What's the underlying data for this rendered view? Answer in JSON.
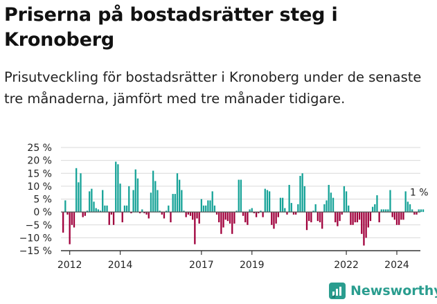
{
  "title": "Priserna på bostadsrätter steg i Kronoberg",
  "subtitle": "Prisutveckling för bostadsrätter i Kronoberg under de senaste tre månaderna, jämfört med tre månader tidigare.",
  "brand": {
    "name": "Newsworthy",
    "icon": "newsworthy-logo-icon",
    "color": "#2a9d8f"
  },
  "colors": {
    "positive": "#17a398",
    "negative": "#a0003c",
    "grid": "#d9d9d9",
    "axis": "#333333"
  },
  "chart_data": {
    "type": "bar",
    "title": "Priserna på bostadsrätter steg i Kronoberg",
    "xlabel": "",
    "ylabel": "",
    "ylim": [
      -15,
      25
    ],
    "yticks": [
      25,
      20,
      15,
      10,
      5,
      0,
      -5,
      -10,
      -15
    ],
    "ytick_labels": [
      "25 %",
      "20 %",
      "15 %",
      "10 %",
      "5 %",
      "0 %",
      "−5 %",
      "−10 %",
      "−15 %"
    ],
    "xtick_labels": [
      "2012",
      "2014",
      "2017",
      "2019",
      "2022",
      "2024"
    ],
    "xtick_index": [
      3,
      26,
      63,
      86,
      129,
      152
    ],
    "grid": true,
    "start": "2011-12",
    "end": "2025-02",
    "last_label": "1 %",
    "values": [
      -8,
      4.5,
      -1,
      -12.5,
      -5,
      -6,
      17,
      11.5,
      15,
      -2,
      -1.5,
      0.5,
      8,
      9,
      4,
      1.5,
      1,
      0.5,
      8.5,
      2.5,
      2.5,
      -5,
      -1,
      -5,
      19.5,
      18.5,
      11,
      -4,
      2.5,
      2.5,
      10,
      -0.5,
      8.5,
      16.5,
      13,
      -0.5,
      1,
      -0.5,
      -1,
      -2.5,
      7.5,
      16,
      12,
      8.5,
      0.5,
      -1,
      -2.5,
      0.5,
      2.5,
      -4,
      7,
      7,
      15,
      12.5,
      8.5,
      0.5,
      -2,
      -1,
      -1.5,
      -3,
      -12.5,
      -2.5,
      -4.5,
      5,
      2.5,
      2.5,
      4.5,
      4.5,
      8,
      2.5,
      -1,
      -4,
      -8.5,
      -6,
      -3,
      -3.5,
      -4.5,
      -8.5,
      -4.5,
      0.5,
      12.5,
      12.5,
      -1.5,
      -4,
      -5,
      1,
      1.5,
      -0.5,
      -2,
      -0.5,
      0.5,
      -2,
      9,
      8.5,
      8,
      -5,
      -6.5,
      -4.5,
      -2,
      5.5,
      5.5,
      1.5,
      -1,
      10.5,
      3.5,
      -1,
      -1,
      3,
      14,
      15,
      10,
      -7,
      -3.5,
      -4,
      0.5,
      3,
      -3.5,
      -4,
      -6.5,
      3,
      4.5,
      10.5,
      7.5,
      5.5,
      -4,
      -5.5,
      -3.5,
      -1,
      10,
      8,
      2.5,
      -5,
      -5,
      -4,
      -4,
      -3,
      -8.5,
      -13,
      -10,
      -6,
      -3.5,
      2,
      3,
      6.5,
      -4,
      1,
      1,
      1,
      1,
      8.5,
      -2,
      -3,
      -5,
      -5,
      -3,
      -3,
      8,
      4,
      3,
      1,
      -1,
      -1,
      1,
      1,
      1
    ]
  }
}
